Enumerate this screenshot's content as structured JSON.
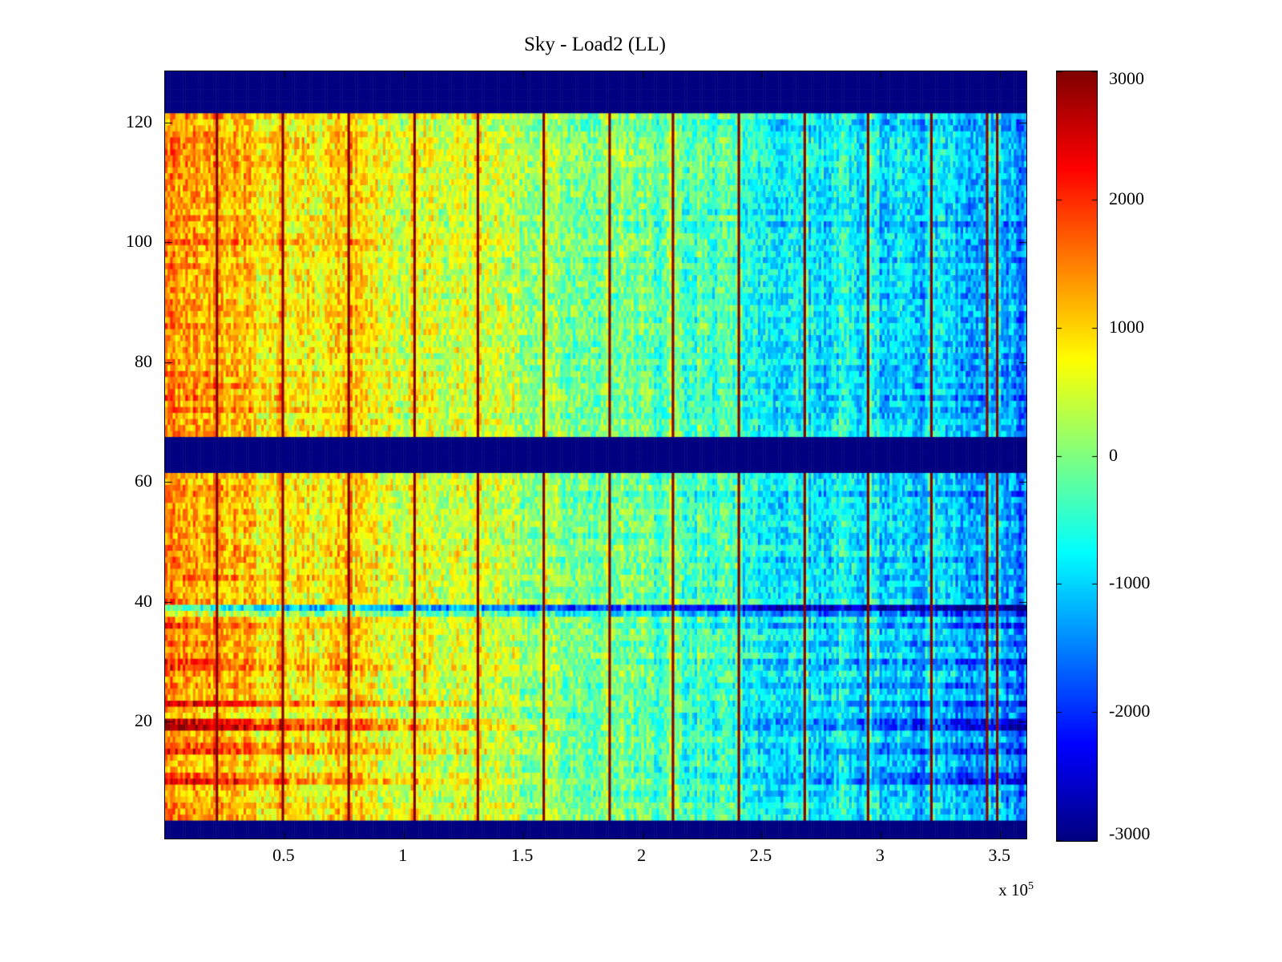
{
  "chart_data": {
    "type": "heatmap",
    "title": "Sky - Load2 (LL)",
    "xlabel": "",
    "ylabel": "",
    "x_range": [
      0,
      361000
    ],
    "y_range": [
      0.5,
      128.5
    ],
    "x_ticks_1e5": [
      0.5,
      1,
      1.5,
      2,
      2.5,
      3,
      3.5
    ],
    "x_tick_labels": [
      "0.5",
      "1",
      "1.5",
      "2",
      "2.5",
      "3",
      "3.5"
    ],
    "x_multiplier_label": "x 10",
    "x_multiplier_exponent": "5",
    "y_ticks": [
      20,
      40,
      60,
      80,
      100,
      120
    ],
    "y_tick_labels": [
      "20",
      "40",
      "60",
      "80",
      "100",
      "120"
    ],
    "grid": false,
    "colormap": "jet",
    "colorbar": {
      "min": -3000,
      "max": 3000,
      "ticks": [
        3000,
        2000,
        1000,
        0,
        -1000,
        -2000,
        -3000
      ],
      "tick_labels": [
        "3000",
        "2000",
        "1000",
        "0",
        "-1000",
        "-2000",
        "-3000"
      ],
      "position": "right"
    },
    "heatmap_model": {
      "description": "Noisy field trending warm (~+1350) at x=0 to cool (~-1400) at x=3.6e5, with saturated dark-blue horizontal bands, thin dark-red vertical stripes, and amplified horizontal rows in the lower half.",
      "ncols": 340,
      "nrows": 128,
      "base_left": 1350,
      "base_right": -1400,
      "cell_noise": 550,
      "col_noise": 260,
      "block_noise": 200,
      "row_noise": 170,
      "band_value": -3000,
      "band_rows": [
        [
          1,
          3
        ],
        [
          62,
          67
        ],
        [
          122,
          128
        ]
      ],
      "stripe_value": 2950,
      "stripe_x": [
        21500,
        49000,
        76500,
        104000,
        131500,
        158500,
        186000,
        213000,
        240500,
        268000,
        295000,
        322000,
        345000,
        349500
      ],
      "stripe_halo": 300,
      "row_gain": {
        "10": 1.8,
        "11": 1.5,
        "15": 1.6,
        "16": 1.4,
        "19": 2.1,
        "20": 1.9,
        "23": 1.7,
        "26": 1.3,
        "29": 1.4,
        "30": 1.5,
        "33": 1.3,
        "36": 1.5,
        "44": 1.25,
        "47": 1.2,
        "58": 1.2,
        "72": 1.25,
        "74": 1.3,
        "76": 1.25,
        "78": 1.2,
        "100": 1.2,
        "103": 1.15
      },
      "row_offset": {
        "39": -1700,
        "38": -600,
        "21": -300,
        "12": -300
      },
      "seed": 42
    }
  },
  "accent_colors": {
    "band_blue": "#000080",
    "stripe_red": "#7f0000",
    "axis": "#000000",
    "background": "#ffffff"
  }
}
